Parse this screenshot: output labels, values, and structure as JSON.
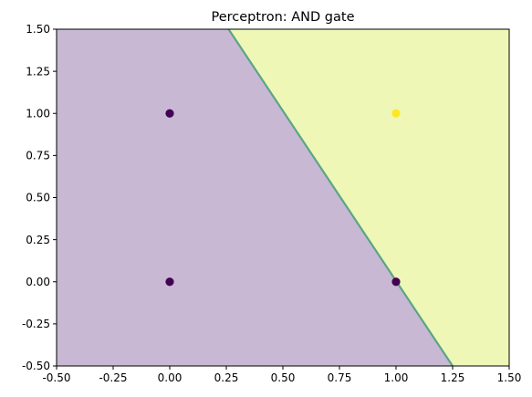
{
  "chart_data": {
    "type": "scatter",
    "title": "Perceptron: AND gate",
    "xlabel": "",
    "ylabel": "",
    "xlim": [
      -0.5,
      1.5
    ],
    "ylim": [
      -0.5,
      1.5
    ],
    "x_ticks": [
      "-0.50",
      "-0.25",
      "0.00",
      "0.25",
      "0.50",
      "0.75",
      "1.00",
      "1.25",
      "1.50"
    ],
    "y_ticks": [
      "-0.50",
      "-0.25",
      "0.00",
      "0.25",
      "0.50",
      "0.75",
      "1.00",
      "1.25",
      "1.50"
    ],
    "grid": false,
    "decision_boundary": {
      "points": [
        [
          0.26,
          1.5
        ],
        [
          1.25,
          -0.5
        ]
      ],
      "region_class_0_color": "#c8b8d3",
      "region_class_1_color": "#eff7b7",
      "line_color": "#5aa585"
    },
    "points": [
      {
        "x": 0,
        "y": 0,
        "label": 0,
        "color": "#440154"
      },
      {
        "x": 0,
        "y": 1,
        "label": 0,
        "color": "#440154"
      },
      {
        "x": 1,
        "y": 0,
        "label": 0,
        "color": "#440154"
      },
      {
        "x": 1,
        "y": 1,
        "label": 1,
        "color": "#fde725"
      }
    ]
  }
}
